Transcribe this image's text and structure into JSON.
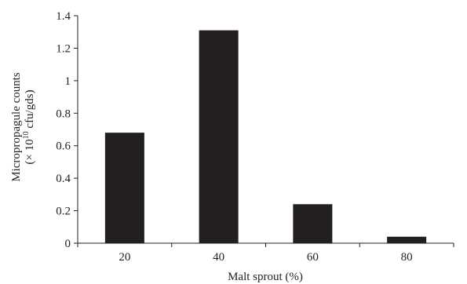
{
  "chart_data": {
    "type": "bar",
    "categories": [
      "20",
      "40",
      "60",
      "80"
    ],
    "values": [
      0.68,
      1.31,
      0.24,
      0.04
    ],
    "xlabel": "Malt sprout (%)",
    "ylabel": {
      "line1": "Micropropagule counts",
      "line2_prefix": "(× 10",
      "line2_exponent": "10",
      "line2_suffix": " cfu/gds)"
    },
    "ylim": [
      0,
      1.4
    ],
    "yticks": [
      "0",
      "0.2",
      "0.4",
      "0.6",
      "0.8",
      "1",
      "1.2",
      "1.4"
    ],
    "grid": false,
    "bar_color": "#231f20",
    "axis_color": "#231f20"
  }
}
